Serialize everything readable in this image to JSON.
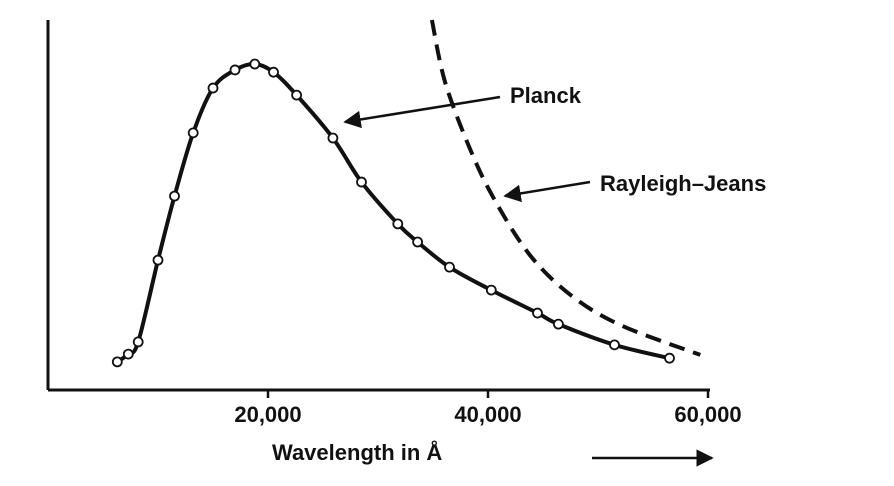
{
  "chart_data": {
    "type": "line",
    "xlabel": "Wavelength in Å",
    "xlim": [
      0,
      60000
    ],
    "xticks": [
      {
        "value": 20000,
        "label": "20,000"
      },
      {
        "value": 40000,
        "label": "40,000"
      },
      {
        "value": 60000,
        "label": "60,000"
      }
    ],
    "ylim": [
      0,
      100
    ],
    "grid": false,
    "annotations": [
      "Planck",
      "Rayleigh–Jeans"
    ],
    "series": [
      {
        "name": "Planck",
        "color": "#111111",
        "style": "solid",
        "markers": true,
        "x": [
          6300,
          7300,
          8200,
          10000,
          11500,
          13200,
          15000,
          17000,
          18800,
          20500,
          22600,
          25900,
          28500,
          31800,
          33600,
          36500,
          40300,
          44500,
          46400,
          51500,
          56500
        ],
        "values": [
          7.6,
          9.7,
          13,
          35.1,
          52.4,
          69.5,
          81.6,
          86.5,
          88.1,
          85.9,
          79.7,
          68.1,
          56.2,
          44.9,
          40,
          33.2,
          27,
          20.8,
          17.8,
          12.2,
          8.6
        ]
      },
      {
        "name": "Rayleigh–Jeans",
        "color": "#111111",
        "style": "dashed",
        "markers": false,
        "x": [
          34900,
          36100,
          38400,
          40600,
          43800,
          47500,
          52000,
          59300
        ],
        "values": [
          100,
          83.2,
          64.9,
          51.4,
          36.5,
          25.7,
          17.6,
          9.5
        ]
      }
    ]
  }
}
